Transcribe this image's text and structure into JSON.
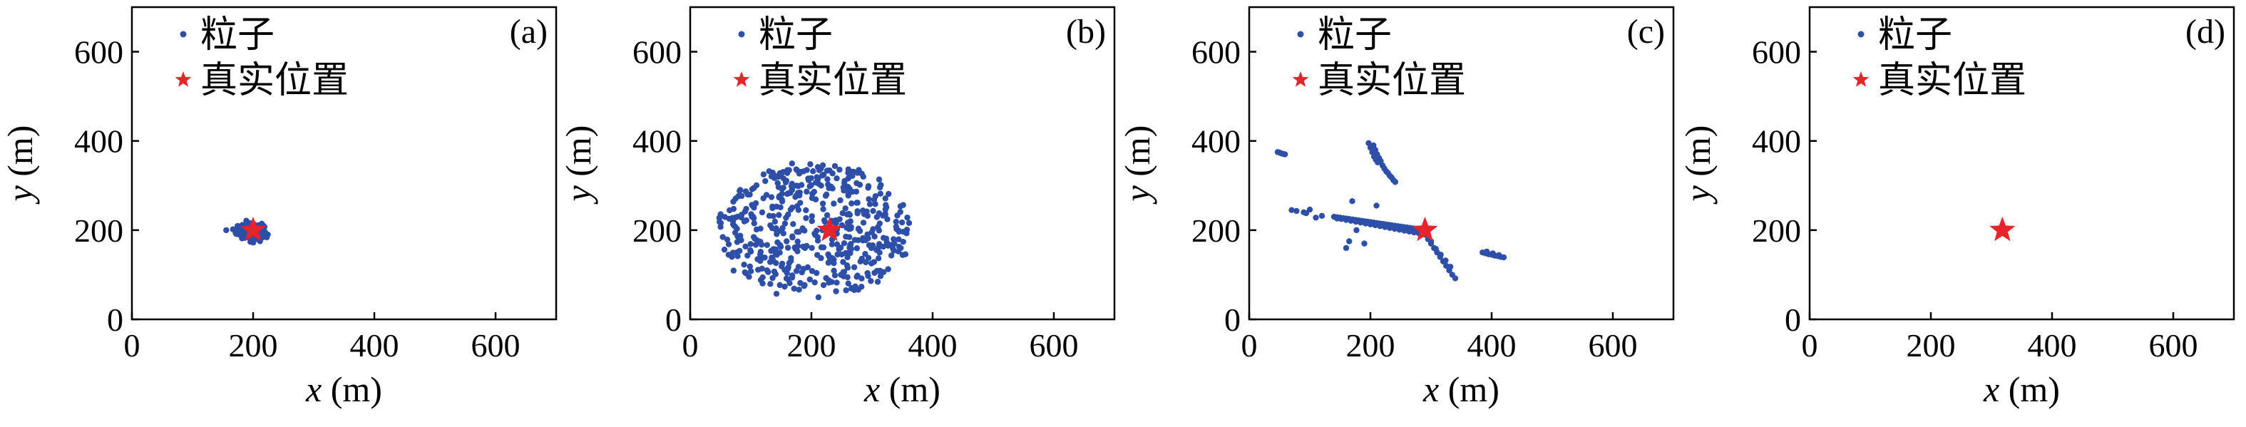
{
  "chart_data": [
    {
      "type": "scatter",
      "panel_label": "(a)",
      "xlabel": "x (m)",
      "ylabel": "y (m)",
      "xlim": [
        0,
        700
      ],
      "ylim": [
        0,
        700
      ],
      "xticks": [
        0,
        200,
        400,
        600
      ],
      "yticks": [
        0,
        200,
        400,
        600
      ],
      "legend": {
        "placement": "top-left",
        "entries": [
          "粒子",
          "真实位置"
        ]
      },
      "particle_color": "#2e4fa8",
      "star_color": "#e8232a",
      "true_position": [
        200,
        200
      ],
      "particles": {
        "distribution": "tight-cluster",
        "center": [
          195,
          197
        ],
        "spread": [
          25,
          18
        ],
        "count": 300,
        "points": []
      }
    },
    {
      "type": "scatter",
      "panel_label": "(b)",
      "xlabel": "x (m)",
      "ylabel": "y (m)",
      "xlim": [
        0,
        700
      ],
      "ylim": [
        0,
        700
      ],
      "xticks": [
        0,
        200,
        400,
        600
      ],
      "yticks": [
        0,
        200,
        400,
        600
      ],
      "legend": {
        "placement": "top-left",
        "entries": [
          "粒子",
          "真实位置"
        ]
      },
      "particle_color": "#2e4fa8",
      "star_color": "#e8232a",
      "true_position": [
        230,
        200
      ],
      "particles": {
        "distribution": "broad-cloud",
        "center": [
          205,
          200
        ],
        "spread": [
          175,
          160
        ],
        "count": 520,
        "points": []
      }
    },
    {
      "type": "scatter",
      "panel_label": "(c)",
      "xlabel": "x (m)",
      "ylabel": "y (m)",
      "xlim": [
        0,
        700
      ],
      "ylim": [
        0,
        700
      ],
      "xticks": [
        0,
        200,
        400,
        600
      ],
      "yticks": [
        0,
        200,
        400,
        600
      ],
      "legend": {
        "placement": "top-left",
        "entries": [
          "粒子",
          "真实位置"
        ]
      },
      "particle_color": "#2e4fa8",
      "star_color": "#e8232a",
      "true_position": [
        290,
        200
      ],
      "particles": {
        "distribution": "streaks",
        "points": [
          [
            47,
            375
          ],
          [
            50,
            374
          ],
          [
            53,
            372
          ],
          [
            56,
            371
          ],
          [
            59,
            370
          ],
          [
            197,
            395
          ],
          [
            200,
            385
          ],
          [
            203,
            375
          ],
          [
            206,
            365
          ],
          [
            209,
            358
          ],
          [
            212,
            352
          ],
          [
            205,
            390
          ],
          [
            208,
            380
          ],
          [
            211,
            370
          ],
          [
            214,
            362
          ],
          [
            217,
            355
          ],
          [
            220,
            345
          ],
          [
            223,
            338
          ],
          [
            226,
            332
          ],
          [
            229,
            328
          ],
          [
            232,
            322
          ],
          [
            235,
            318
          ],
          [
            238,
            312
          ],
          [
            241,
            308
          ],
          [
            70,
            245
          ],
          [
            78,
            243
          ],
          [
            90,
            240
          ],
          [
            94,
            238
          ],
          [
            100,
            246
          ],
          [
            110,
            228
          ],
          [
            120,
            232
          ],
          [
            140,
            230
          ],
          [
            145,
            229
          ],
          [
            150,
            228
          ],
          [
            155,
            227
          ],
          [
            160,
            226
          ],
          [
            165,
            225
          ],
          [
            170,
            224
          ],
          [
            175,
            223
          ],
          [
            180,
            222
          ],
          [
            185,
            221
          ],
          [
            190,
            220
          ],
          [
            195,
            219
          ],
          [
            200,
            218
          ],
          [
            205,
            217
          ],
          [
            210,
            216
          ],
          [
            215,
            215
          ],
          [
            220,
            214
          ],
          [
            225,
            213
          ],
          [
            230,
            212
          ],
          [
            235,
            211
          ],
          [
            240,
            210
          ],
          [
            245,
            209
          ],
          [
            250,
            208
          ],
          [
            255,
            207
          ],
          [
            260,
            206
          ],
          [
            265,
            205
          ],
          [
            270,
            204
          ],
          [
            275,
            203
          ],
          [
            145,
            226
          ],
          [
            152,
            225
          ],
          [
            160,
            223
          ],
          [
            168,
            221
          ],
          [
            176,
            219
          ],
          [
            184,
            217
          ],
          [
            192,
            215
          ],
          [
            200,
            213
          ],
          [
            208,
            211
          ],
          [
            216,
            209
          ],
          [
            224,
            207
          ],
          [
            232,
            205
          ],
          [
            240,
            203
          ],
          [
            248,
            201
          ],
          [
            256,
            199
          ],
          [
            264,
            197
          ],
          [
            272,
            195
          ],
          [
            280,
            193
          ],
          [
            170,
            265
          ],
          [
            177,
            200
          ],
          [
            190,
            170
          ],
          [
            165,
            175
          ],
          [
            160,
            160
          ],
          [
            210,
            255
          ],
          [
            285,
            200
          ],
          [
            290,
            190
          ],
          [
            295,
            180
          ],
          [
            300,
            170
          ],
          [
            305,
            160
          ],
          [
            310,
            150
          ],
          [
            315,
            140
          ],
          [
            320,
            130
          ],
          [
            325,
            120
          ],
          [
            330,
            110
          ],
          [
            335,
            100
          ],
          [
            340,
            92
          ],
          [
            300,
            175
          ],
          [
            308,
            158
          ],
          [
            316,
            145
          ],
          [
            324,
            132
          ],
          [
            332,
            118
          ],
          [
            385,
            150
          ],
          [
            390,
            148
          ],
          [
            395,
            146
          ],
          [
            400,
            145
          ],
          [
            405,
            143
          ],
          [
            410,
            142
          ],
          [
            415,
            140
          ],
          [
            420,
            139
          ],
          [
            392,
            152
          ],
          [
            402,
            148
          ],
          [
            412,
            144
          ]
        ]
      }
    },
    {
      "type": "scatter",
      "panel_label": "(d)",
      "xlabel": "x (m)",
      "ylabel": "y (m)",
      "xlim": [
        0,
        700
      ],
      "ylim": [
        0,
        700
      ],
      "xticks": [
        0,
        200,
        400,
        600
      ],
      "yticks": [
        0,
        200,
        400,
        600
      ],
      "legend": {
        "placement": "top-left",
        "entries": [
          "粒子",
          "真实位置"
        ]
      },
      "particle_color": "#2e4fa8",
      "star_color": "#e8232a",
      "true_position": [
        318,
        200
      ],
      "particles": {
        "distribution": "converged",
        "center": [
          318,
          200
        ],
        "spread": [
          3,
          3
        ],
        "count": 60,
        "points": []
      }
    }
  ]
}
